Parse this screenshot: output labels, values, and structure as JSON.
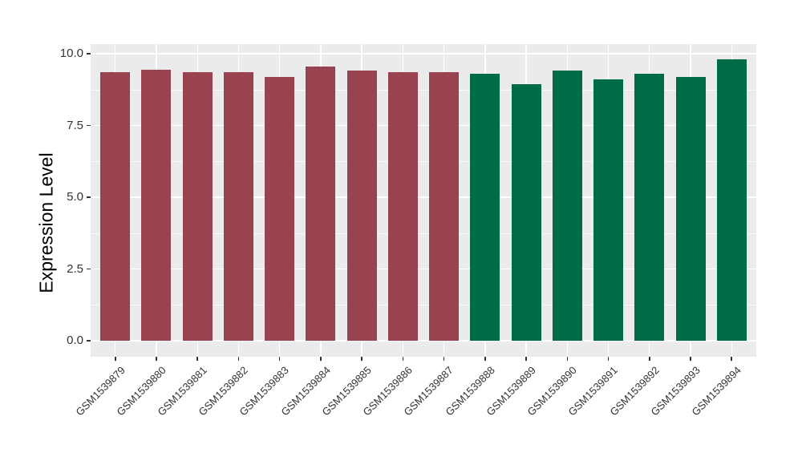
{
  "figure": {
    "background": "#ffffff"
  },
  "chart_data": {
    "type": "bar",
    "title": "",
    "xlabel": "",
    "ylabel": "Expression Level",
    "categories": [
      "GSM1539879",
      "GSM1539880",
      "GSM1539881",
      "GSM1539882",
      "GSM1539883",
      "GSM1539884",
      "GSM1539885",
      "GSM1539886",
      "GSM1539887",
      "GSM1539888",
      "GSM1539889",
      "GSM1539890",
      "GSM1539891",
      "GSM1539892",
      "GSM1539893",
      "GSM1539894"
    ],
    "values": [
      9.35,
      9.45,
      9.35,
      9.35,
      9.2,
      9.55,
      9.4,
      9.35,
      9.35,
      9.3,
      8.95,
      9.4,
      9.1,
      9.3,
      9.2,
      9.8
    ],
    "bar_colors": [
      "#9a4350",
      "#9a4350",
      "#9a4350",
      "#9a4350",
      "#9a4350",
      "#9a4350",
      "#9a4350",
      "#9a4350",
      "#9a4350",
      "#006b47",
      "#006b47",
      "#006b47",
      "#006b47",
      "#006b47",
      "#006b47",
      "#006b47"
    ],
    "group_colors": {
      "left_group": "#9a4350",
      "right_group": "#006b47"
    },
    "yticks": [
      0.0,
      2.5,
      5.0,
      7.5,
      10.0
    ],
    "ytick_labels": [
      "0.0",
      "2.5",
      "5.0",
      "7.5",
      "10.0"
    ],
    "ylim": [
      0,
      10.3
    ],
    "grid": true,
    "legend": false,
    "panel_background": "#ebebeb",
    "grid_color": "#ffffff",
    "axis_text_color": "#333333"
  }
}
